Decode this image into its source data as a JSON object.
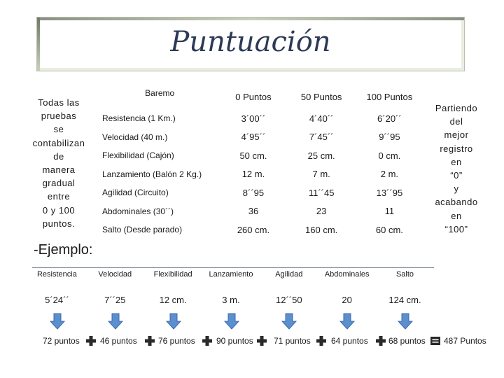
{
  "title": "Puntuación",
  "left_note": [
    "Todas las",
    "pruebas",
    "se",
    "contabilizan",
    "de",
    "manera",
    "gradual",
    "entre",
    "0 y 100",
    "puntos."
  ],
  "right_note": [
    "Partiendo",
    "del",
    "mejor",
    "registro",
    "en",
    "“0”",
    "y",
    "acabando",
    "en",
    "“100”"
  ],
  "baremo": {
    "headers": [
      "Baremo",
      "0 Puntos",
      "50 Puntos",
      "100 Puntos"
    ],
    "rows": [
      [
        "Resistencia (1 Km.)",
        "3´00´´",
        "4´40´´",
        "6´20´´"
      ],
      [
        "Velocidad (40 m.)",
        "4´95´´",
        "7´45´´",
        "9´´95"
      ],
      [
        "Flexibilidad (Cajón)",
        "50 cm.",
        "25 cm.",
        "0 cm."
      ],
      [
        "Lanzamiento (Balón 2 Kg.)",
        "12 m.",
        "7 m.",
        "2 m."
      ],
      [
        "Agilidad (Circuito)",
        "8´´95",
        "11´´45",
        "13´´95"
      ],
      [
        "Abdominales (30´´)",
        "36",
        "23",
        "11"
      ],
      [
        "Salto (Desde parado)",
        "260 cm.",
        "160 cm.",
        "60 cm."
      ]
    ]
  },
  "ejemplo": {
    "title": "-Ejemplo:",
    "labels": [
      "Resistencia",
      "Velocidad",
      "Flexibilidad",
      "Lanzamiento",
      "Agilidad",
      "Abdominales",
      "Salto"
    ],
    "values": [
      "5´24´´",
      "7´´25",
      "12 cm.",
      "3 m.",
      "12´´50",
      "20",
      "124 cm."
    ],
    "points": [
      "72 puntos",
      "46 puntos",
      "76 puntos",
      "90 puntos",
      "71 puntos",
      "64 puntos",
      "68 puntos"
    ],
    "total": "487 Puntos"
  },
  "colors": {
    "arrow": "#5b8fd0",
    "arrow_dark": "#3d6aa6",
    "operator": "#2a2a2a",
    "title": "#2c3a56"
  },
  "icons": {
    "arrow": "down-arrow-icon",
    "plus": "plus-icon",
    "equals": "equals-icon"
  }
}
